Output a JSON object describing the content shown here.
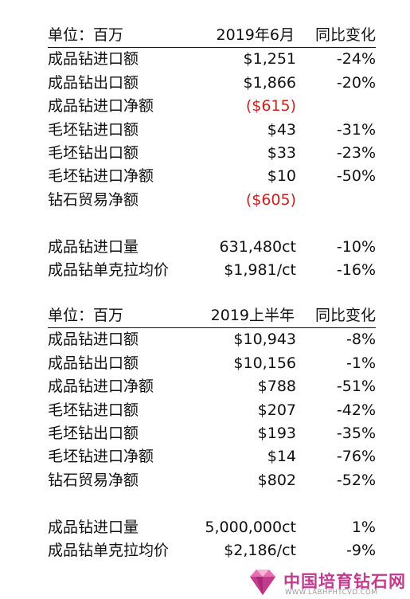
{
  "section1": {
    "header": {
      "label": "单位：百万",
      "period": "2019年6月",
      "change": "同比变化"
    },
    "rows": [
      {
        "label": "成品钻进口额",
        "value": "$1,251",
        "change": "-24%"
      },
      {
        "label": "成品钻出口额",
        "value": "$1,866",
        "change": "-20%"
      },
      {
        "label": "成品钻进口净额",
        "value": "($615)",
        "change": ""
      },
      {
        "label": "毛坯钻进口额",
        "value": "$43",
        "change": "-31%"
      },
      {
        "label": "毛坯钻出口额",
        "value": "$33",
        "change": "-23%"
      },
      {
        "label": "毛坯钻进口净额",
        "value": "$10",
        "change": "-50%"
      },
      {
        "label": "钻石贸易净额",
        "value": "($605)",
        "change": ""
      }
    ],
    "extra": [
      {
        "label": "成品钻进口量",
        "value": "631,480ct",
        "change": "-10%"
      },
      {
        "label": "成品钻单克拉均价",
        "value": "$1,981/ct",
        "change": "-16%"
      }
    ]
  },
  "section2": {
    "header": {
      "label": "单位：百万",
      "period": "2019上半年",
      "change": "同比变化"
    },
    "rows": [
      {
        "label": "成品钻进口额",
        "value": "$10,943",
        "change": "-8%"
      },
      {
        "label": "成品钻出口额",
        "value": "$10,156",
        "change": "-1%"
      },
      {
        "label": "成品钻进口净额",
        "value": "$788",
        "change": "-51%"
      },
      {
        "label": "毛坯钻进口额",
        "value": "$207",
        "change": "-42%"
      },
      {
        "label": "毛坯钻出口额",
        "value": "$193",
        "change": "-35%"
      },
      {
        "label": "毛坯钻进口净额",
        "value": "$14",
        "change": "-76%"
      },
      {
        "label": "钻石贸易净额",
        "value": "$802",
        "change": "-52%"
      }
    ],
    "extra": [
      {
        "label": "成品钻进口量",
        "value": "5,000,000ct",
        "change": "1%"
      },
      {
        "label": "成品钻单克拉均价",
        "value": "$2,186/ct",
        "change": "-9%"
      }
    ]
  },
  "watermark": {
    "name": "中国培育钻石网",
    "url": "WWW.LABHPHTCVD.COM",
    "icon": "diamond-logo-icon"
  },
  "colors": {
    "negative": "#cc1f1f",
    "text": "#111111",
    "brand": "#c33b8c"
  }
}
